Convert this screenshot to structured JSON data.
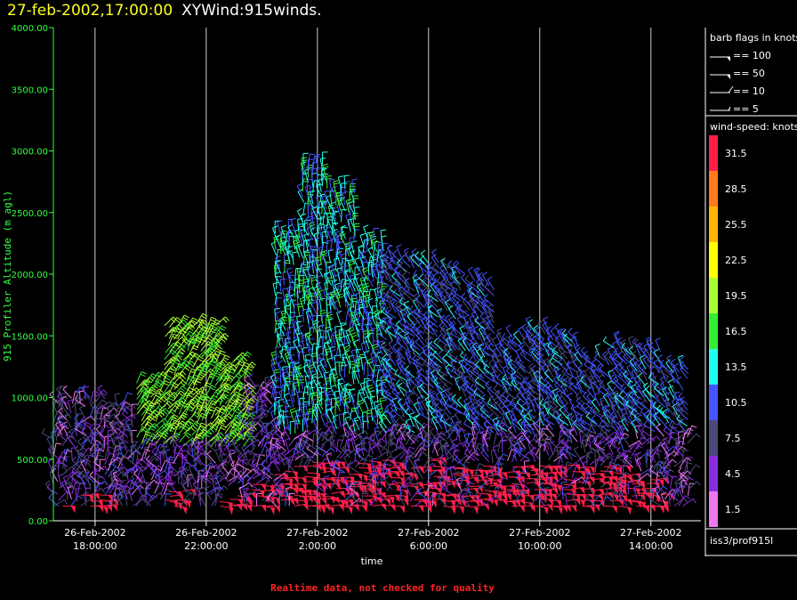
{
  "header": {
    "time": "27-feb-2002,17:00:00",
    "name": "XYWind:915winds."
  },
  "footer_note": "Realtime data, not checked for quality",
  "chart_data": {
    "type": "scatter",
    "subtype": "wind-barbs",
    "ylabel": "915 Profiler Altitude (m agl)",
    "xlabel": "time",
    "ylim": [
      0,
      4000
    ],
    "yticks": [
      "0.00",
      "500.00",
      "1000.00",
      "1500.00",
      "2000.00",
      "2500.00",
      "3000.00",
      "3500.00",
      "4000.00"
    ],
    "xlim_hours": [
      -0.5,
      22.8
    ],
    "xticks": [
      {
        "hour": 1,
        "date": "26-Feb-2002",
        "time": "18:00:00"
      },
      {
        "hour": 5,
        "date": "26-Feb-2002",
        "time": "22:00:00"
      },
      {
        "hour": 9,
        "date": "27-Feb-2002",
        "time": "2:00:00"
      },
      {
        "hour": 13,
        "date": "27-Feb-2002",
        "time": "6:00:00"
      },
      {
        "hour": 17,
        "date": "27-Feb-2002",
        "time": "10:00:00"
      },
      {
        "hour": 21,
        "date": "27-Feb-2002",
        "time": "14:00:00"
      }
    ],
    "grid_x": true,
    "legend_barbs": {
      "title": "barb flags in knots",
      "items": [
        {
          "label": "== 100",
          "kind": "flag"
        },
        {
          "label": "== 50",
          "kind": "flag"
        },
        {
          "label": "== 10",
          "kind": "full"
        },
        {
          "label": "== 5",
          "kind": "half"
        }
      ]
    },
    "colorbar": {
      "title": "wind-speed: knots",
      "levels": [
        {
          "label": "31.5",
          "color": "#ff1f4a"
        },
        {
          "label": "28.5",
          "color": "#ff7a1a"
        },
        {
          "label": "25.5",
          "color": "#ffb400"
        },
        {
          "label": "22.5",
          "color": "#ffff00"
        },
        {
          "label": "19.5",
          "color": "#aaff33"
        },
        {
          "label": "16.5",
          "color": "#33ee33"
        },
        {
          "label": "13.5",
          "color": "#22ffee"
        },
        {
          "label": "10.5",
          "color": "#4455ff"
        },
        {
          "label": "7.5",
          "color": "#4a4a7a"
        },
        {
          "label": "4.5",
          "color": "#8a2be2"
        },
        {
          "label": "1.5",
          "color": "#ee77ee"
        }
      ]
    },
    "platform": "iss3/prof915l",
    "profiles": [
      {
        "hour": 0,
        "top": 1000,
        "mode": "weak"
      },
      {
        "hour": 1,
        "top": 1000,
        "mode": "weak"
      },
      {
        "hour": 2,
        "top": 950,
        "mode": "weak"
      },
      {
        "hour": 3,
        "top": 1150,
        "mode": "green"
      },
      {
        "hour": 4,
        "top": 1600,
        "mode": "green"
      },
      {
        "hour": 5,
        "top": 1600,
        "mode": "green"
      },
      {
        "hour": 6,
        "top": 1300,
        "mode": "green"
      },
      {
        "hour": 7,
        "top": 1100,
        "mode": "mixed"
      },
      {
        "hour": 8,
        "top": 2350,
        "mode": "cyan"
      },
      {
        "hour": 9,
        "top": 2900,
        "mode": "cyan"
      },
      {
        "hour": 10,
        "top": 2700,
        "mode": "cyan"
      },
      {
        "hour": 11,
        "top": 2300,
        "mode": "cyan"
      },
      {
        "hour": 12,
        "top": 2150,
        "mode": "blue"
      },
      {
        "hour": 13,
        "top": 2100,
        "mode": "blue"
      },
      {
        "hour": 14,
        "top": 2050,
        "mode": "blue"
      },
      {
        "hour": 15,
        "top": 1950,
        "mode": "blue"
      },
      {
        "hour": 16,
        "top": 1500,
        "mode": "blue"
      },
      {
        "hour": 17,
        "top": 1550,
        "mode": "blue"
      },
      {
        "hour": 18,
        "top": 1500,
        "mode": "blue"
      },
      {
        "hour": 19,
        "top": 1350,
        "mode": "blue"
      },
      {
        "hour": 20,
        "top": 1450,
        "mode": "blue"
      },
      {
        "hour": 21,
        "top": 1400,
        "mode": "blue"
      },
      {
        "hour": 22,
        "top": 1250,
        "mode": "blue"
      }
    ],
    "low_jet": [
      {
        "hour": 0,
        "top": 150
      },
      {
        "hour": 1,
        "top": 250
      },
      {
        "hour": 4,
        "top": 250
      },
      {
        "hour": 6,
        "top": 250
      },
      {
        "hour": 7,
        "top": 300
      },
      {
        "hour": 8,
        "top": 450
      },
      {
        "hour": 9,
        "top": 500
      },
      {
        "hour": 10,
        "top": 500
      },
      {
        "hour": 11,
        "top": 500
      },
      {
        "hour": 12,
        "top": 500
      },
      {
        "hour": 13,
        "top": 500
      },
      {
        "hour": 14,
        "top": 450
      },
      {
        "hour": 15,
        "top": 450
      },
      {
        "hour": 16,
        "top": 450
      },
      {
        "hour": 17,
        "top": 450
      },
      {
        "hour": 18,
        "top": 450
      },
      {
        "hour": 19,
        "top": 450
      },
      {
        "hour": 20,
        "top": 450
      },
      {
        "hour": 21,
        "top": 350
      },
      {
        "hour": 22,
        "top": 100
      }
    ]
  }
}
